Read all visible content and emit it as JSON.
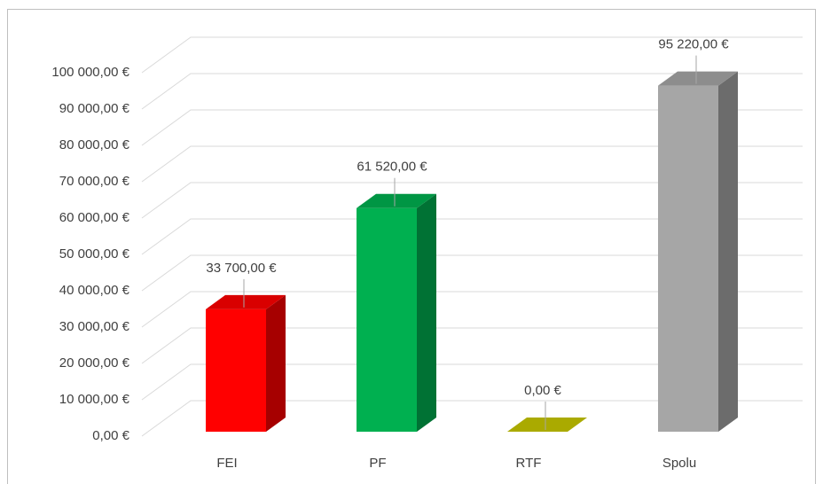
{
  "chart_data": {
    "type": "bar3d",
    "categories": [
      "FEI",
      "PF",
      "RTF",
      "Spolu"
    ],
    "values": [
      33700,
      61520,
      0,
      95220
    ],
    "value_labels": [
      "33 700,00 €",
      "61 520,00 €",
      "0,00 €",
      "95 220,00 €"
    ],
    "colors": [
      "#ff0000",
      "#00b050",
      "#c8c800",
      "#a6a6a6"
    ],
    "ylim": [
      0,
      100000
    ],
    "yticks": [
      {
        "value": 0,
        "label": "0,00 €"
      },
      {
        "value": 10000,
        "label": "10 000,00 €"
      },
      {
        "value": 20000,
        "label": "20 000,00 €"
      },
      {
        "value": 30000,
        "label": "30 000,00 €"
      },
      {
        "value": 40000,
        "label": "40 000,00 €"
      },
      {
        "value": 50000,
        "label": "50 000,00 €"
      },
      {
        "value": 60000,
        "label": "60 000,00 €"
      },
      {
        "value": 70000,
        "label": "70 000,00 €"
      },
      {
        "value": 80000,
        "label": "80 000,00 €"
      },
      {
        "value": 90000,
        "label": "90 000,00 €"
      },
      {
        "value": 100000,
        "label": "100 000,00 €"
      }
    ],
    "grid": true
  }
}
